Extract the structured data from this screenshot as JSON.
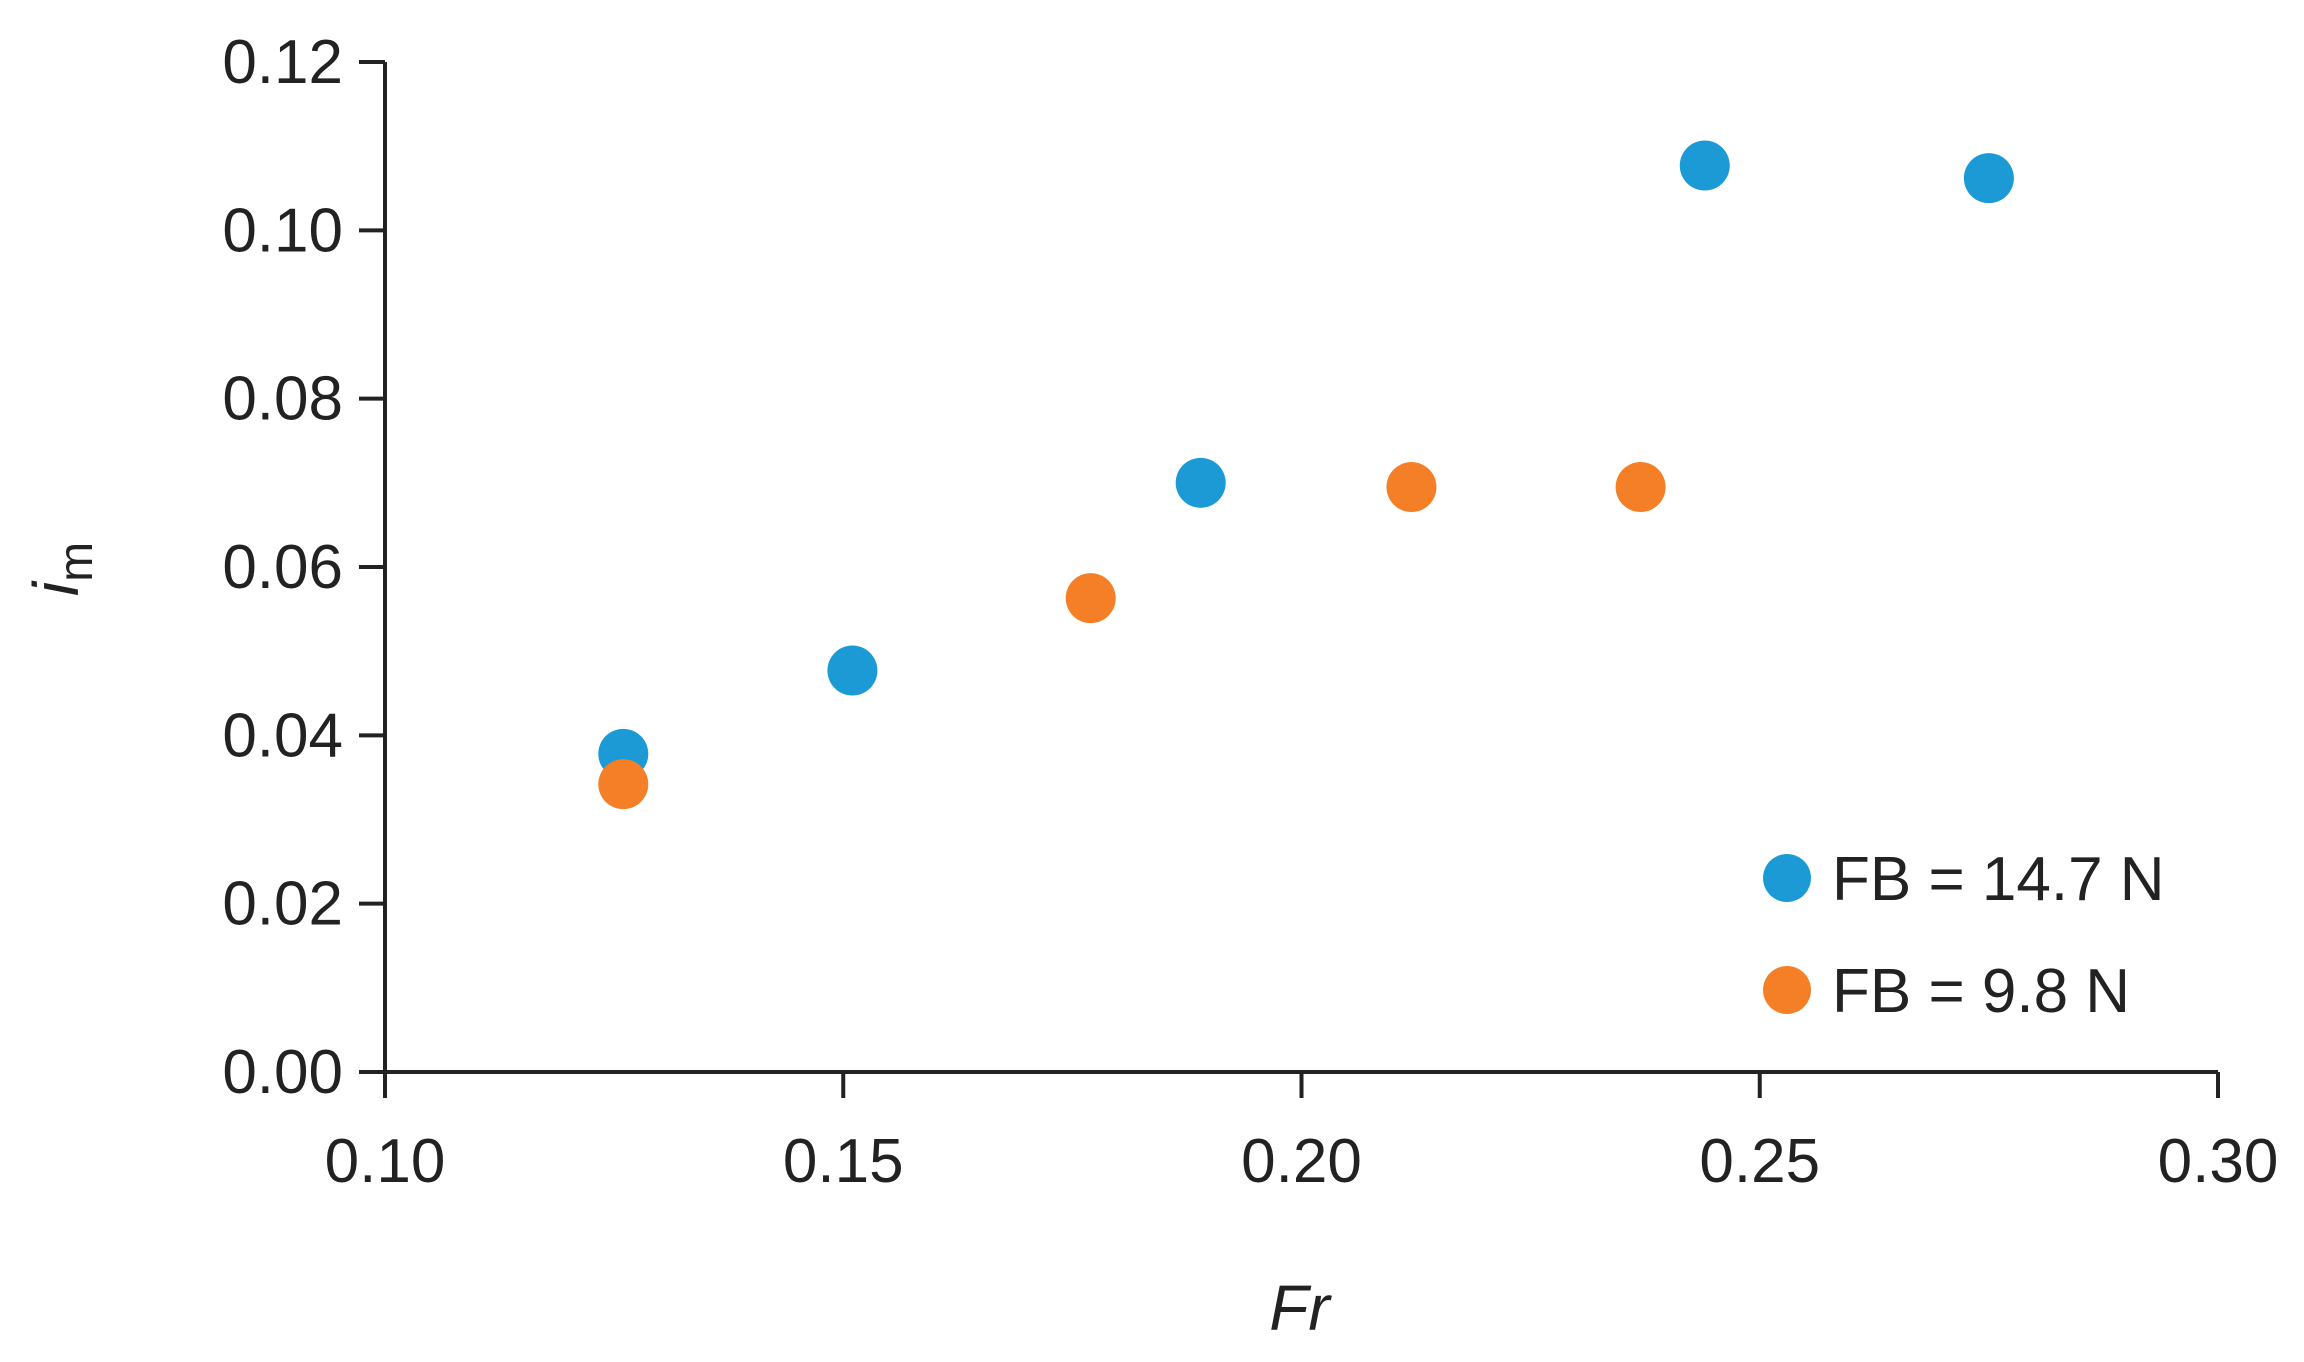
{
  "chart_data": {
    "type": "scatter",
    "title": "",
    "xlabel": "Fr",
    "ylabel": "i",
    "ylabel_subscript": "m",
    "xlim": [
      0.1,
      0.3
    ],
    "ylim": [
      0.0,
      0.12
    ],
    "x_ticks": [
      0.1,
      0.15,
      0.2,
      0.25,
      0.3
    ],
    "x_tick_labels": [
      "0.10",
      "0.15",
      "0.20",
      "0.25",
      "0.30"
    ],
    "y_ticks": [
      0.0,
      0.02,
      0.04,
      0.06,
      0.08,
      0.1,
      0.12
    ],
    "y_tick_labels": [
      "0.00",
      "0.02",
      "0.04",
      "0.06",
      "0.08",
      "0.10",
      "0.12"
    ],
    "grid": false,
    "legend_position": "bottom-right",
    "series": [
      {
        "name": "FB = 14.7 N",
        "color": "#1B9AD6",
        "points": [
          {
            "x": 0.126,
            "y": 0.0378
          },
          {
            "x": 0.151,
            "y": 0.0477
          },
          {
            "x": 0.189,
            "y": 0.07
          },
          {
            "x": 0.244,
            "y": 0.1077
          },
          {
            "x": 0.275,
            "y": 0.1062
          }
        ]
      },
      {
        "name": "FB = 9.8 N",
        "color": "#F47F26",
        "points": [
          {
            "x": 0.126,
            "y": 0.0342
          },
          {
            "x": 0.177,
            "y": 0.0563
          },
          {
            "x": 0.212,
            "y": 0.0695
          },
          {
            "x": 0.237,
            "y": 0.0695
          }
        ]
      }
    ]
  }
}
